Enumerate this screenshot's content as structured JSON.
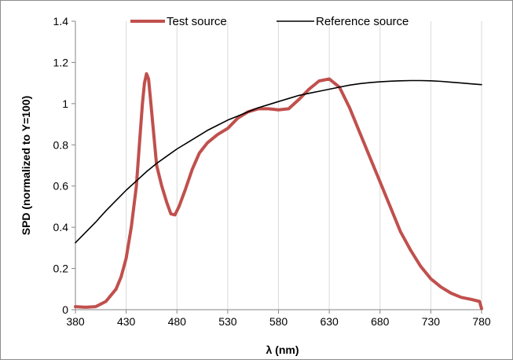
{
  "chart_data": {
    "type": "line",
    "xlabel": "λ (nm)",
    "ylabel": "SPD (normalized to Y=100)",
    "xlim": [
      380,
      780
    ],
    "ylim": [
      0,
      1.4
    ],
    "x_ticks": [
      "380",
      "430",
      "480",
      "530",
      "580",
      "630",
      "680",
      "730",
      "780"
    ],
    "y_ticks": [
      "0",
      "0.2",
      "0.4",
      "0.6",
      "0.8",
      "1",
      "1.2",
      "1.4"
    ],
    "grid": "vertical",
    "legend_position": "top",
    "series": [
      {
        "name": "Test source",
        "color": "#c0504d",
        "points": [
          [
            380,
            0.015
          ],
          [
            390,
            0.012
          ],
          [
            400,
            0.015
          ],
          [
            410,
            0.04
          ],
          [
            420,
            0.1
          ],
          [
            425,
            0.16
          ],
          [
            430,
            0.25
          ],
          [
            435,
            0.4
          ],
          [
            440,
            0.6
          ],
          [
            443,
            0.8
          ],
          [
            446,
            1.0
          ],
          [
            448,
            1.1
          ],
          [
            450,
            1.145
          ],
          [
            452,
            1.12
          ],
          [
            454,
            1.02
          ],
          [
            457,
            0.86
          ],
          [
            460,
            0.7
          ],
          [
            465,
            0.6
          ],
          [
            470,
            0.52
          ],
          [
            474,
            0.465
          ],
          [
            478,
            0.46
          ],
          [
            482,
            0.5
          ],
          [
            488,
            0.58
          ],
          [
            495,
            0.68
          ],
          [
            502,
            0.76
          ],
          [
            510,
            0.81
          ],
          [
            520,
            0.85
          ],
          [
            530,
            0.88
          ],
          [
            540,
            0.93
          ],
          [
            550,
            0.96
          ],
          [
            560,
            0.975
          ],
          [
            570,
            0.975
          ],
          [
            580,
            0.97
          ],
          [
            590,
            0.975
          ],
          [
            600,
            1.02
          ],
          [
            610,
            1.07
          ],
          [
            620,
            1.11
          ],
          [
            630,
            1.12
          ],
          [
            640,
            1.08
          ],
          [
            650,
            0.98
          ],
          [
            660,
            0.86
          ],
          [
            670,
            0.74
          ],
          [
            680,
            0.62
          ],
          [
            690,
            0.5
          ],
          [
            700,
            0.38
          ],
          [
            710,
            0.29
          ],
          [
            720,
            0.21
          ],
          [
            730,
            0.15
          ],
          [
            740,
            0.11
          ],
          [
            750,
            0.08
          ],
          [
            760,
            0.06
          ],
          [
            770,
            0.05
          ],
          [
            778,
            0.04
          ],
          [
            780,
            0.005
          ]
        ]
      },
      {
        "name": "Reference source",
        "color": "#000000",
        "points": [
          [
            380,
            0.325
          ],
          [
            390,
            0.375
          ],
          [
            400,
            0.425
          ],
          [
            410,
            0.48
          ],
          [
            420,
            0.53
          ],
          [
            430,
            0.58
          ],
          [
            440,
            0.625
          ],
          [
            450,
            0.67
          ],
          [
            460,
            0.71
          ],
          [
            470,
            0.745
          ],
          [
            480,
            0.78
          ],
          [
            490,
            0.81
          ],
          [
            500,
            0.84
          ],
          [
            510,
            0.87
          ],
          [
            520,
            0.895
          ],
          [
            530,
            0.92
          ],
          [
            540,
            0.94
          ],
          [
            550,
            0.96
          ],
          [
            560,
            0.98
          ],
          [
            570,
            0.995
          ],
          [
            580,
            1.01
          ],
          [
            590,
            1.025
          ],
          [
            600,
            1.04
          ],
          [
            610,
            1.05
          ],
          [
            620,
            1.06
          ],
          [
            630,
            1.07
          ],
          [
            640,
            1.08
          ],
          [
            650,
            1.09
          ],
          [
            660,
            1.097
          ],
          [
            670,
            1.102
          ],
          [
            680,
            1.106
          ],
          [
            690,
            1.109
          ],
          [
            700,
            1.111
          ],
          [
            710,
            1.112
          ],
          [
            720,
            1.112
          ],
          [
            730,
            1.111
          ],
          [
            740,
            1.108
          ],
          [
            750,
            1.104
          ],
          [
            760,
            1.1
          ],
          [
            770,
            1.096
          ],
          [
            780,
            1.092
          ]
        ]
      }
    ]
  }
}
